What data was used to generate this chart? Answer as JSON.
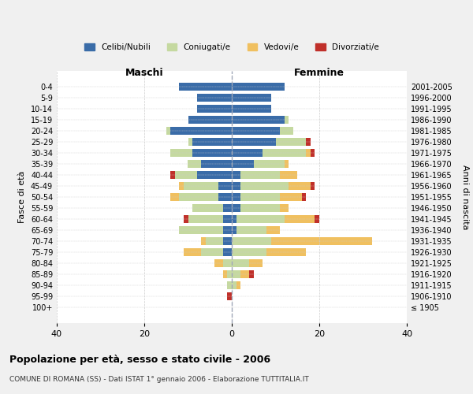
{
  "age_groups": [
    "0-4",
    "5-9",
    "10-14",
    "15-19",
    "20-24",
    "25-29",
    "30-34",
    "35-39",
    "40-44",
    "45-49",
    "50-54",
    "55-59",
    "60-64",
    "65-69",
    "70-74",
    "75-79",
    "80-84",
    "85-89",
    "90-94",
    "95-99",
    "100+"
  ],
  "birth_years": [
    "2001-2005",
    "1996-2000",
    "1991-1995",
    "1986-1990",
    "1981-1985",
    "1976-1980",
    "1971-1975",
    "1966-1970",
    "1961-1965",
    "1956-1960",
    "1951-1955",
    "1946-1950",
    "1941-1945",
    "1936-1940",
    "1931-1935",
    "1926-1930",
    "1921-1925",
    "1916-1920",
    "1911-1915",
    "1906-1910",
    "≤ 1905"
  ],
  "colors": {
    "celibi": "#3a6ca8",
    "coniugati": "#c5d9a0",
    "vedovi": "#f0c060",
    "divorziati": "#c0302a"
  },
  "maschi": {
    "celibi": [
      12,
      8,
      8,
      10,
      14,
      9,
      9,
      7,
      8,
      3,
      3,
      2,
      2,
      2,
      2,
      2,
      0,
      0,
      0,
      0,
      0
    ],
    "coniugati": [
      0,
      0,
      0,
      0,
      1,
      1,
      5,
      3,
      5,
      8,
      9,
      7,
      8,
      10,
      4,
      5,
      2,
      1,
      1,
      0,
      0
    ],
    "vedovi": [
      0,
      0,
      0,
      0,
      0,
      0,
      0,
      0,
      0,
      1,
      2,
      0,
      0,
      0,
      1,
      4,
      2,
      1,
      0,
      0,
      0
    ],
    "divorziati": [
      0,
      0,
      0,
      0,
      0,
      0,
      0,
      0,
      1,
      0,
      0,
      0,
      1,
      0,
      0,
      0,
      0,
      0,
      0,
      1,
      0
    ]
  },
  "femmine": {
    "celibi": [
      12,
      9,
      9,
      12,
      11,
      10,
      7,
      5,
      2,
      2,
      2,
      2,
      1,
      1,
      0,
      0,
      0,
      0,
      0,
      0,
      0
    ],
    "coniugati": [
      0,
      0,
      0,
      1,
      3,
      7,
      10,
      7,
      9,
      11,
      9,
      9,
      11,
      7,
      9,
      8,
      4,
      2,
      1,
      0,
      0
    ],
    "vedovi": [
      0,
      0,
      0,
      0,
      0,
      0,
      1,
      1,
      4,
      5,
      5,
      2,
      7,
      3,
      23,
      9,
      3,
      2,
      1,
      0,
      0
    ],
    "divorziati": [
      0,
      0,
      0,
      0,
      0,
      1,
      1,
      0,
      0,
      1,
      1,
      0,
      1,
      0,
      0,
      0,
      0,
      1,
      0,
      0,
      0
    ]
  },
  "xlim": 40,
  "xlabel_left": "Maschi",
  "xlabel_right": "Femmine",
  "ylabel_left": "Fasce di età",
  "ylabel_right": "Anni di nascita",
  "title": "Popolazione per età, sesso e stato civile - 2006",
  "subtitle": "COMUNE DI ROMANA (SS) - Dati ISTAT 1° gennaio 2006 - Elaborazione TUTTITALIA.IT",
  "legend_labels": [
    "Celibi/Nubili",
    "Coniugati/e",
    "Vedovi/e",
    "Divorziati/e"
  ],
  "bg_color": "#f0f0f0",
  "plot_bg": "#ffffff"
}
